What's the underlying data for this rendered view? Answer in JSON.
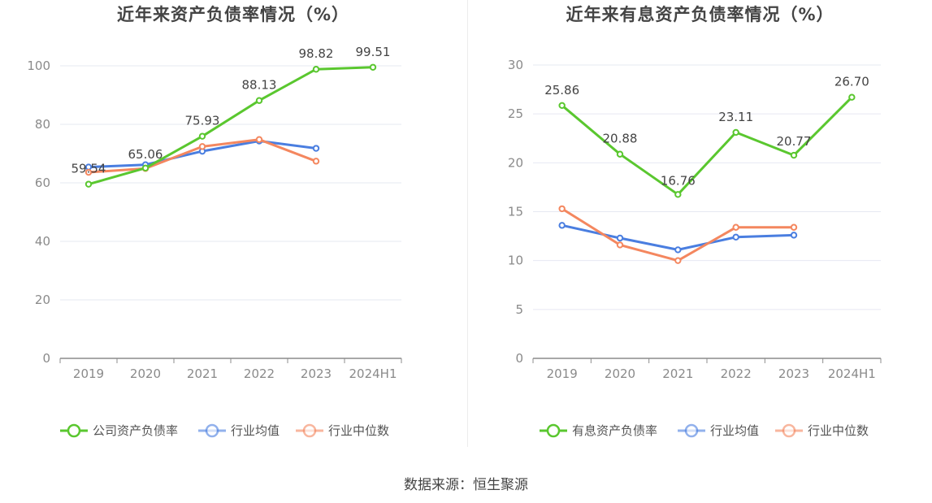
{
  "source": "数据来源：恒生聚源",
  "colors": {
    "company": "#5ac72f",
    "industry_avg": "#4a7ee0",
    "industry_median": "#f4875f",
    "grid": "#e6e8f2",
    "axis": "#8c8c8c"
  },
  "chart_data": [
    {
      "type": "line",
      "title": "近年来资产负债率情况（%）",
      "categories": [
        "2019",
        "2020",
        "2021",
        "2022",
        "2023",
        "2024H1"
      ],
      "ylim": [
        0,
        100
      ],
      "yticks": [
        0,
        20,
        40,
        60,
        80,
        100
      ],
      "grid": true,
      "legend_position": "bottom",
      "series": [
        {
          "name": "公司资产负债率",
          "color": "#5ac72f",
          "values": [
            59.54,
            65.06,
            75.93,
            88.13,
            98.82,
            99.51
          ],
          "labels": [
            "59.54",
            "65.06",
            "75.93",
            "88.13",
            "98.82",
            "99.51"
          ]
        },
        {
          "name": "行业均值",
          "color": "#4a7ee0",
          "values": [
            65.4,
            66.2,
            70.8,
            74.3,
            71.8,
            null
          ]
        },
        {
          "name": "行业中位数",
          "color": "#f4875f",
          "values": [
            63.6,
            64.9,
            72.4,
            74.8,
            67.4,
            null
          ]
        }
      ]
    },
    {
      "type": "line",
      "title": "近年来有息资产负债率情况（%）",
      "categories": [
        "2019",
        "2020",
        "2021",
        "2022",
        "2023",
        "2024H1"
      ],
      "ylim": [
        0,
        30
      ],
      "yticks": [
        0,
        5,
        10,
        15,
        20,
        25,
        30
      ],
      "grid": true,
      "legend_position": "bottom",
      "series": [
        {
          "name": "有息资产负债率",
          "color": "#5ac72f",
          "values": [
            25.86,
            20.88,
            16.76,
            23.11,
            20.77,
            26.7
          ],
          "labels": [
            "25.86",
            "20.88",
            "16.76",
            "23.11",
            "20.77",
            "26.70"
          ]
        },
        {
          "name": "行业均值",
          "color": "#4a7ee0",
          "values": [
            13.6,
            12.3,
            11.1,
            12.4,
            12.6,
            null
          ]
        },
        {
          "name": "行业中位数",
          "color": "#f4875f",
          "values": [
            15.3,
            11.6,
            10.0,
            13.4,
            13.4,
            null
          ]
        }
      ]
    }
  ]
}
